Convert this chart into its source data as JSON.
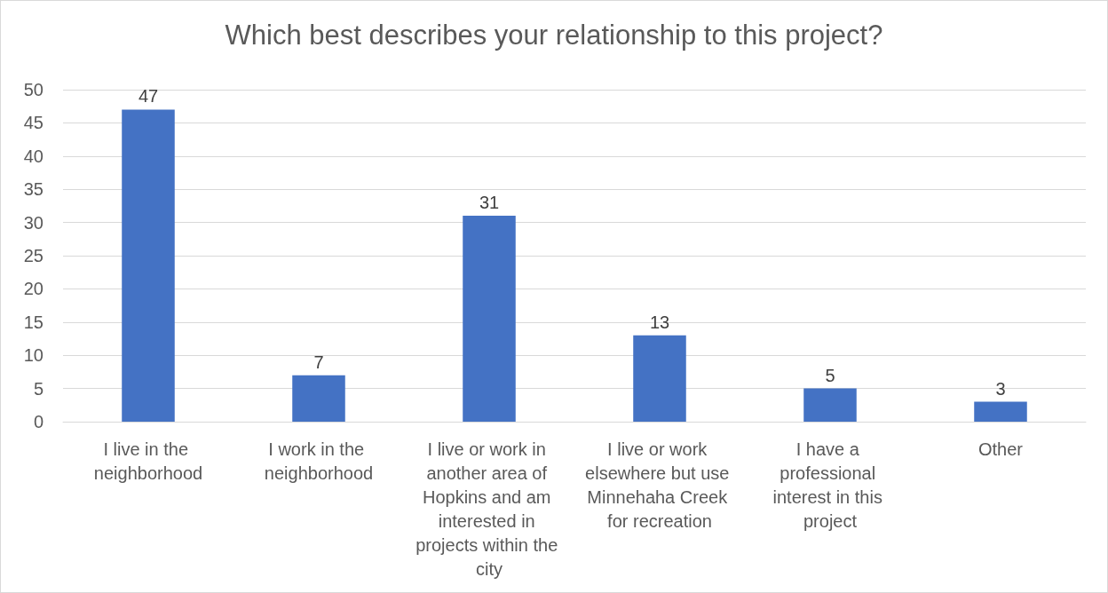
{
  "chart_data": {
    "type": "bar",
    "title": "Which best describes your relationship to this project?",
    "categories": [
      "I live in the neighborhood",
      "I work in the neighborhood",
      "I live or work in another area of Hopkins and am interested in projects within the city",
      "I live or work elsewhere but use Minnehaha Creek for recreation",
      "I have a professional interest in this project",
      "Other"
    ],
    "values": [
      47,
      7,
      31,
      13,
      5,
      3
    ],
    "color": "#4472c4",
    "ylim": [
      0,
      50
    ],
    "yticks": [
      0,
      5,
      10,
      15,
      20,
      25,
      30,
      35,
      40,
      45,
      50
    ],
    "grid": "y",
    "data_labels": true
  }
}
